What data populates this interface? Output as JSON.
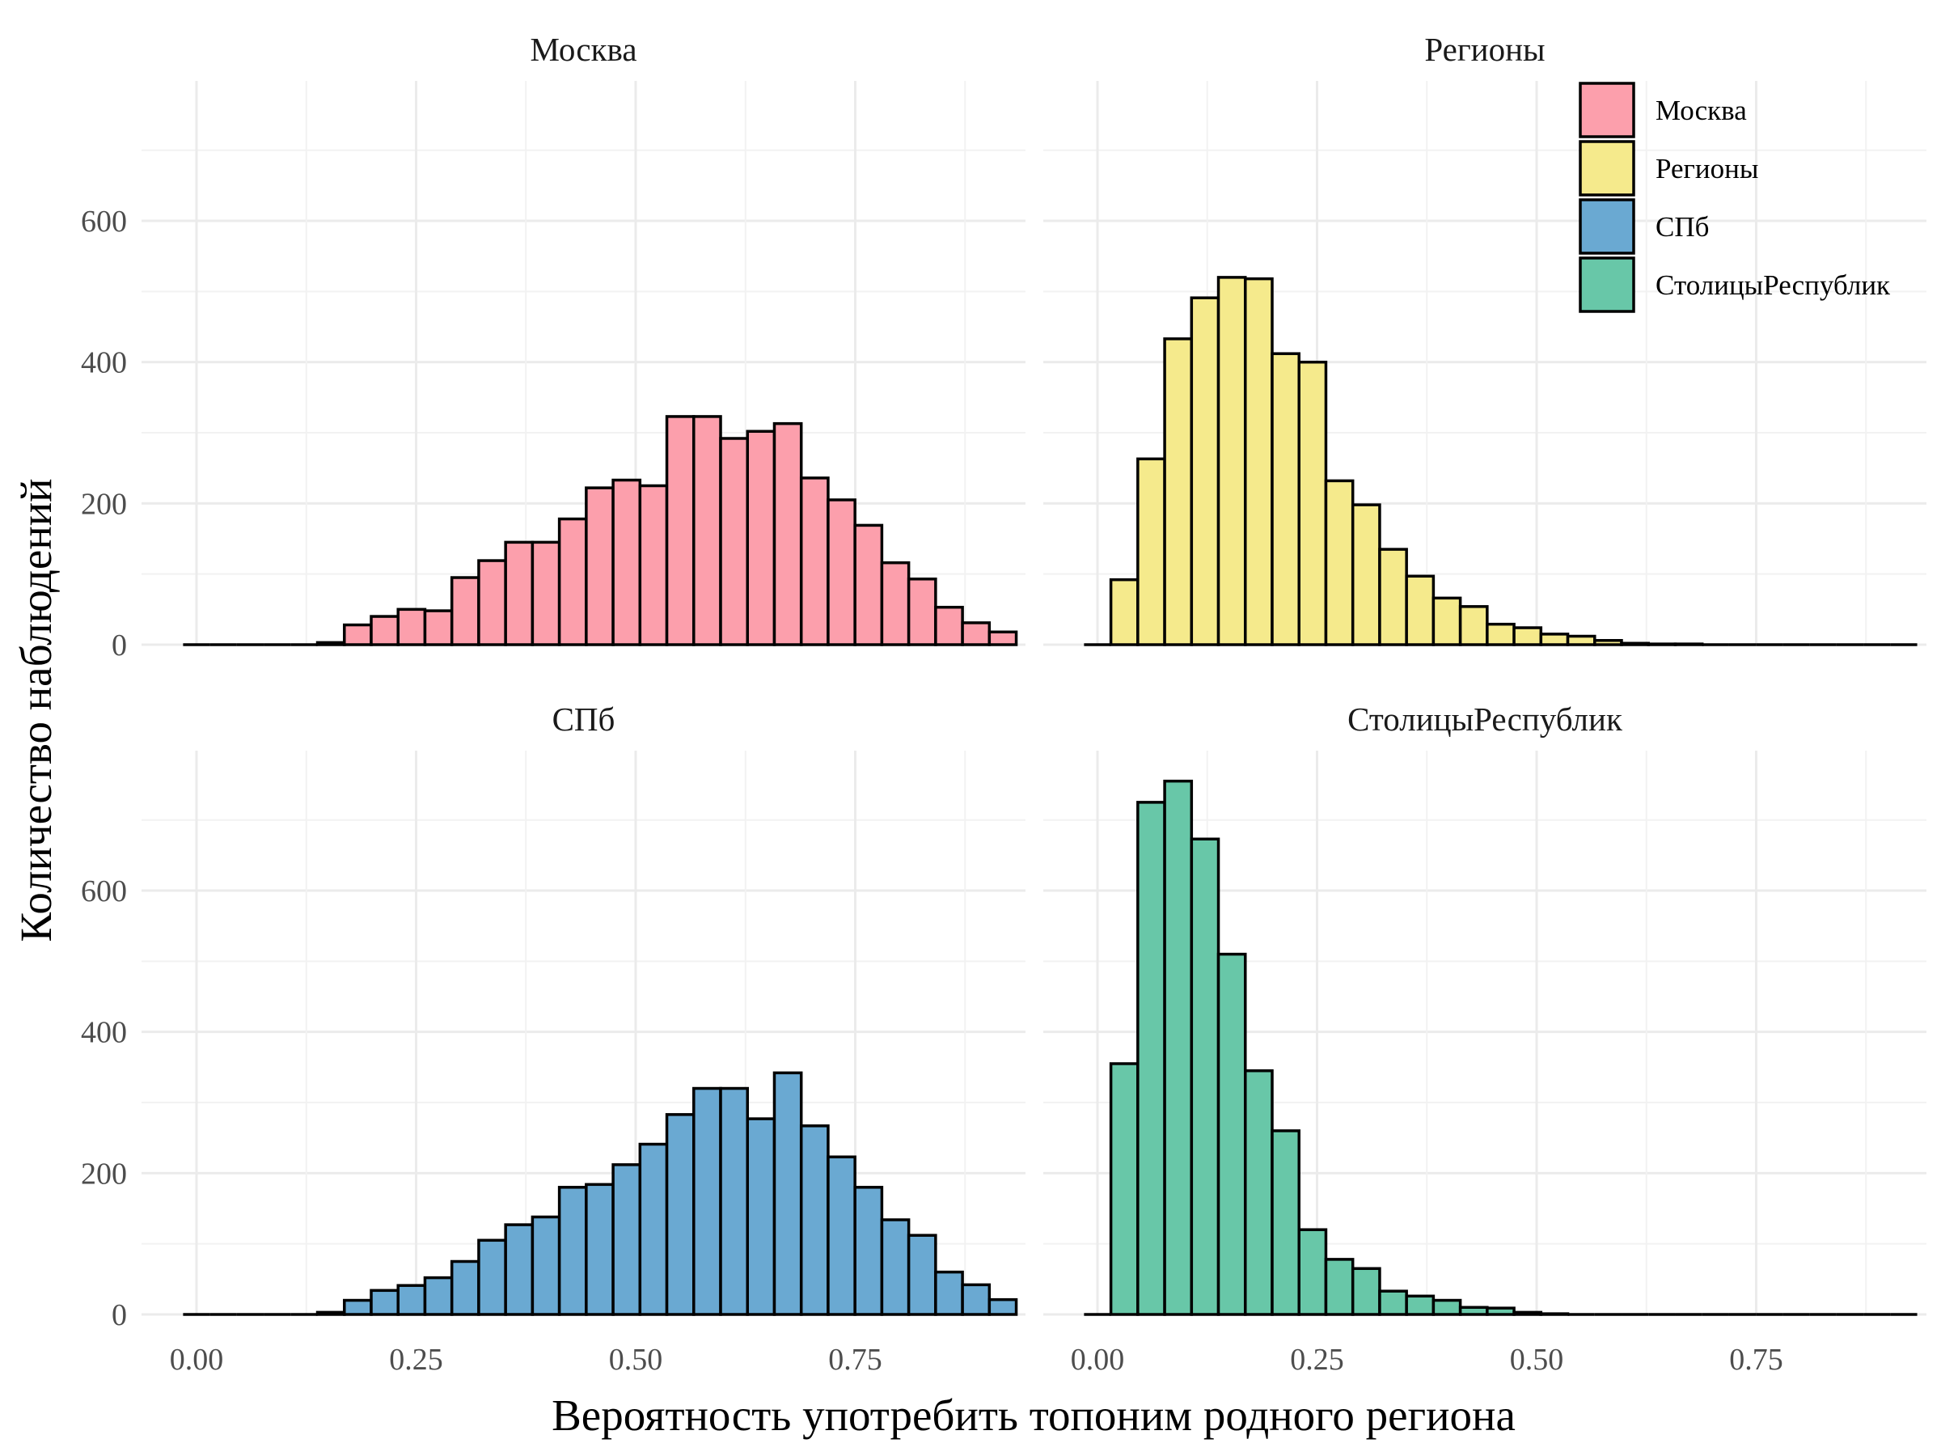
{
  "chart_data": {
    "type": "bar",
    "subtype": "histogram-faceted",
    "xlabel": "Вероятность употребить топоним родного региона",
    "ylabel": "Количество наблюдений",
    "xlim": [
      -0.02,
      0.9
    ],
    "x_ticks": [
      "0.00",
      "0.25",
      "0.50",
      "0.75"
    ],
    "x_tick_values": [
      0,
      0.25,
      0.5,
      0.75
    ],
    "y_ticks": [
      "0",
      "200",
      "400",
      "600"
    ],
    "y_tick_values": [
      0,
      200,
      400,
      600
    ],
    "grid": true,
    "legend_position": "top-right",
    "bin_width": 0.0306,
    "bin_start": -0.0153,
    "panels": [
      {
        "title": "Москва",
        "color": "#fc9fac",
        "ylim": [
          0,
          720
        ],
        "values": [
          0,
          0,
          0,
          0,
          0,
          3,
          28,
          40,
          50,
          48,
          95,
          119,
          145,
          145,
          178,
          222,
          233,
          225,
          323,
          323,
          292,
          302,
          313,
          236,
          205,
          169,
          116,
          93,
          53,
          31,
          18
        ]
      },
      {
        "title": "Регионы",
        "color": "#f5ea8c",
        "ylim": [
          0,
          720
        ],
        "values": [
          0,
          92,
          263,
          433,
          491,
          520,
          518,
          412,
          400,
          232,
          198,
          135,
          97,
          66,
          54,
          29,
          24,
          15,
          12,
          6,
          2,
          1,
          1,
          0,
          0,
          0,
          0,
          0,
          0,
          0,
          0
        ]
      },
      {
        "title": "СПб",
        "color": "#6aa9d2",
        "ylim": [
          0,
          760
        ],
        "values": [
          0,
          0,
          0,
          0,
          0,
          3,
          20,
          34,
          41,
          52,
          75,
          105,
          127,
          138,
          180,
          184,
          212,
          241,
          283,
          320,
          320,
          277,
          342,
          267,
          223,
          180,
          134,
          112,
          60,
          42,
          21
        ]
      },
      {
        "title": "СтолицыРеспублик",
        "color": "#68c7a8",
        "ylim": [
          0,
          760
        ],
        "values": [
          0,
          355,
          725,
          755,
          673,
          510,
          345,
          260,
          120,
          78,
          65,
          33,
          26,
          20,
          10,
          9,
          3,
          1,
          0,
          0,
          0,
          0,
          0,
          0,
          0,
          0,
          0,
          0,
          0,
          0,
          0
        ]
      }
    ],
    "legend": [
      {
        "label": "Москва",
        "color": "#fc9fac"
      },
      {
        "label": "Регионы",
        "color": "#f5ea8c"
      },
      {
        "label": "СПб",
        "color": "#6aa9d2"
      },
      {
        "label": "СтолицыРеспублик",
        "color": "#68c7a8"
      }
    ]
  }
}
